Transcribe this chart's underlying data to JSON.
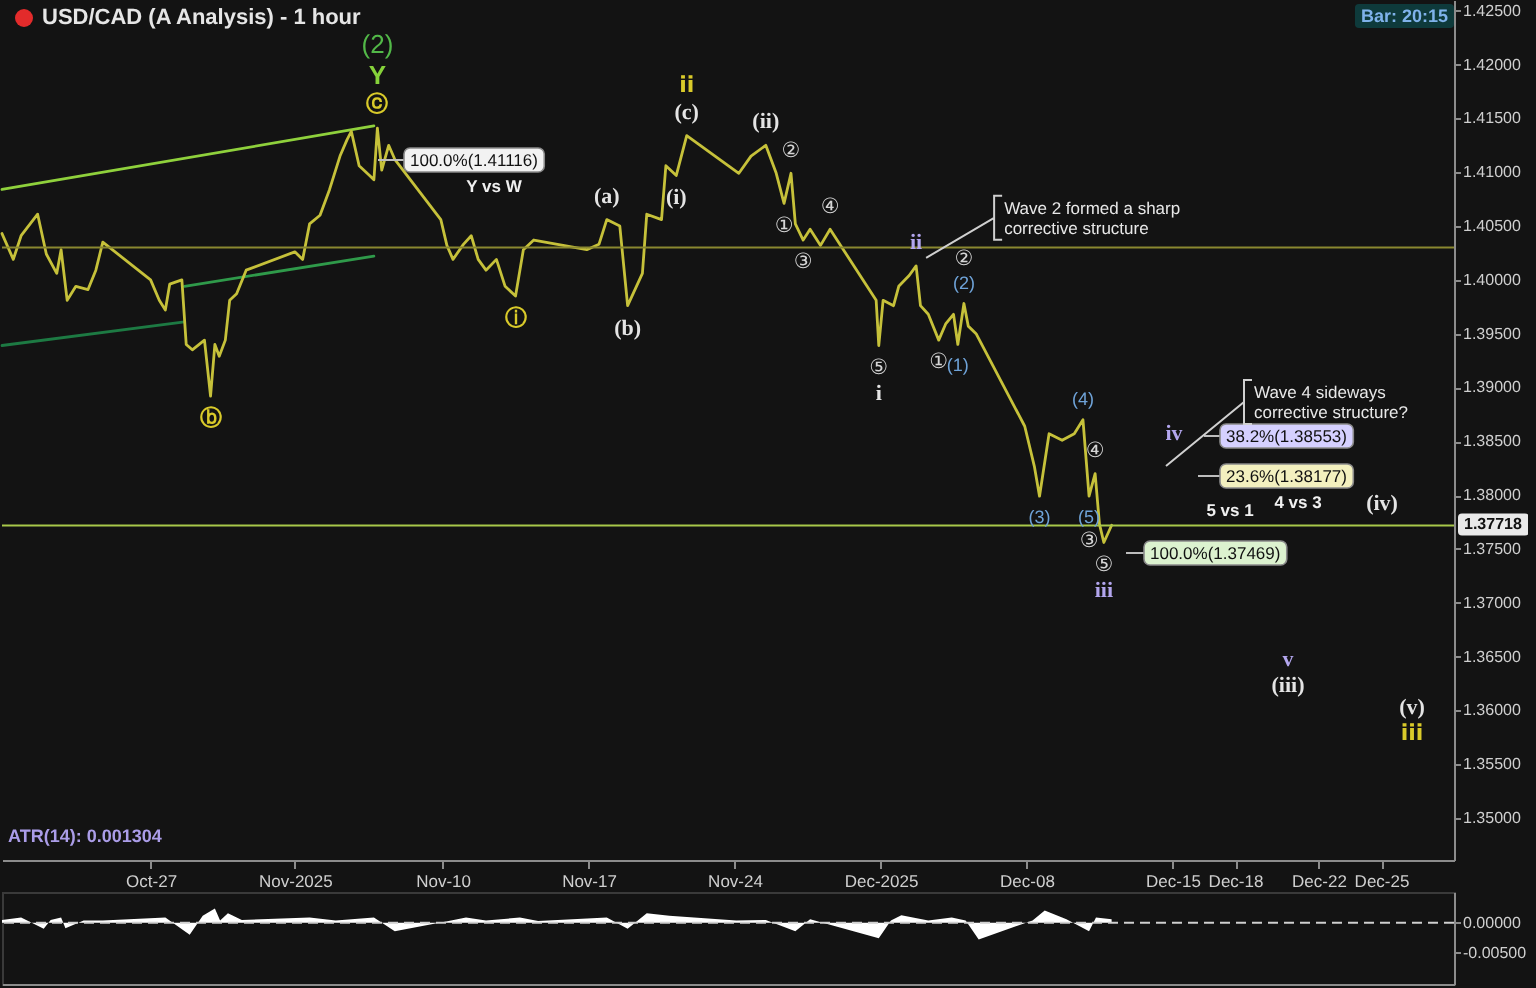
{
  "chart_data": [
    {
      "type": "line",
      "title": "USD/CAD (A Analysis) - 1 hour",
      "x": [
        "2025-10-19T21:00",
        "2025-10-20T10:00",
        "2025-10-20T19:00",
        "2025-10-21T14:00",
        "2025-10-22T00:00",
        "2025-10-22T12:00",
        "2025-10-22T17:00",
        "2025-10-23T00:00",
        "2025-10-23T10:00",
        "2025-10-24T00:00",
        "2025-10-24T09:00",
        "2025-10-24T17:00",
        "2025-10-27T00:00",
        "2025-10-27T10:00",
        "2025-10-27T17:00",
        "2025-10-27T22:00",
        "2025-10-28T12:00",
        "2025-10-28T17:00",
        "2025-10-29T00:00",
        "2025-10-29T14:00",
        "2025-10-29T21:00",
        "2025-10-30T02:00",
        "2025-10-30T07:00",
        "2025-10-30T14:00",
        "2025-10-30T19:00",
        "2025-10-31T03:00",
        "2025-10-31T14:00",
        "2025-11-02T22:00",
        "2025-11-03T07:00",
        "2025-11-03T15:00",
        "2025-11-04T03:00",
        "2025-11-04T14:00",
        "2025-11-05T02:00",
        "2025-11-05T10:00",
        "2025-11-05T15:00",
        "2025-11-06T00:00",
        "2025-11-06T12:00",
        "2025-11-06T17:00",
        "2025-11-06T21:00",
        "2025-11-07T02:00",
        "2025-11-07T10:00",
        "2025-11-07T17:00",
        "2025-11-09T22:00",
        "2025-11-10T05:00",
        "2025-11-10T12:00",
        "2025-11-11T00:00",
        "2025-11-11T09:00",
        "2025-11-11T17:00",
        "2025-11-12T02:00",
        "2025-11-12T14:00",
        "2025-11-13T00:00",
        "2025-11-13T12:00",
        "2025-11-13T21:00",
        "2025-11-14T09:00",
        "2025-11-16T22:00",
        "2025-11-17T12:00",
        "2025-11-17T21:00",
        "2025-11-18T12:00",
        "2025-11-18T21:00",
        "2025-11-19T14:00",
        "2025-11-19T19:00",
        "2025-11-20T12:00",
        "2025-11-20T17:00",
        "2025-11-21T05:00",
        "2025-11-21T17:00",
        "2025-11-24T05:00",
        "2025-11-24T19:00",
        "2025-11-25T12:00",
        "2025-11-26T00:00",
        "2025-11-26T09:00",
        "2025-11-26T17:00",
        "2025-11-26T22:00",
        "2025-11-27T07:00",
        "2025-11-27T15:00",
        "2025-11-28T03:00",
        "2025-11-28T14:00",
        "2025-11-30T19:00",
        "2025-11-30T22:00",
        "2025-12-01T03:00",
        "2025-12-01T15:00",
        "2025-12-01T21:00",
        "2025-12-02T09:00",
        "2025-12-02T17:00",
        "2025-12-02T22:00",
        "2025-12-03T07:00",
        "2025-12-03T19:00",
        "2025-12-04T03:00",
        "2025-12-04T12:00",
        "2025-12-04T17:00",
        "2025-12-05T00:00",
        "2025-12-05T05:00",
        "2025-12-05T14:00",
        "2025-12-07T22:00",
        "2025-12-08T09:00",
        "2025-12-08T15:00",
        "2025-12-09T02:00",
        "2025-12-09T17:00",
        "2025-12-10T07:00",
        "2025-12-10T17:00",
        "2025-12-11T00:00",
        "2025-12-11T07:00",
        "2025-12-11T12:00",
        "2025-12-11T17:00",
        "2025-12-12T02:00"
      ],
      "series": [
        {
          "color": "#8fd13c",
          "x": [
            "2025-10-19T21:00",
            "2025-11-06T17:00"
          ],
          "values": [
            1.4084,
            1.4143
          ]
        },
        {
          "color": "#1d7a43",
          "x": [
            "2025-10-19T21:00",
            "2025-10-28T15:00"
          ],
          "values": [
            1.3939,
            1.3961
          ]
        },
        {
          "color": "#2f9a4a",
          "x": [
            "2025-10-28T15:00",
            "2025-11-06T17:00"
          ],
          "values": [
            1.3994,
            1.4022
          ]
        },
        {
          "color": "#c6c13a",
          "values": [
            1.4043,
            1.4019,
            1.4041,
            1.4061,
            1.4024,
            1.4006,
            1.4028,
            1.3981,
            1.3994,
            1.3991,
            1.4009,
            1.4035,
            1.4,
            1.3981,
            1.3972,
            1.3996,
            1.4,
            1.394,
            1.3935,
            1.3944,
            1.3892,
            1.394,
            1.3929,
            1.3944,
            1.3981,
            1.3987,
            1.4009,
            1.4026,
            1.4019,
            1.4052,
            1.406,
            1.4084,
            1.4115,
            1.413,
            1.4138,
            1.4106,
            1.4097,
            1.4093,
            1.4141,
            1.4102,
            1.4125,
            1.4112,
            1.4056,
            1.4032,
            1.4019,
            1.4033,
            1.4041,
            1.4019,
            1.4009,
            1.4019,
            1.3994,
            1.3985,
            1.4028,
            1.4037,
            1.4028,
            1.4033,
            1.4056,
            1.405,
            1.3976,
            1.4006,
            1.4061,
            1.4056,
            1.4106,
            1.4097,
            1.4134,
            1.4099,
            1.4115,
            1.4125,
            1.4099,
            1.4071,
            1.4099,
            1.4052,
            1.4037,
            1.4047,
            1.4032,
            1.4047,
            1.3981,
            1.3939,
            1.3981,
            1.3976,
            1.3994,
            1.4004,
            1.4013,
            1.3976,
            1.3968,
            1.3944,
            1.3959,
            1.3968,
            1.394,
            1.3978,
            1.3957,
            1.395,
            1.3864,
            1.3827,
            1.3799,
            1.3857,
            1.3851,
            1.3857,
            1.387,
            1.3799,
            1.382,
            1.3773,
            1.3756,
            1.3772
          ]
        }
      ],
      "xlim": [
        "2025-10-19T21:00",
        "2025-12-28T12:00"
      ],
      "xticks": [
        {
          "value": "2025-10-27",
          "label": "Oct-27"
        },
        {
          "value": "2025-11-02T22:00",
          "label": "Nov-2025"
        },
        {
          "value": "2025-11-10",
          "label": "Nov-10"
        },
        {
          "value": "2025-11-17",
          "label": "Nov-17"
        },
        {
          "value": "2025-11-24",
          "label": "Nov-24"
        },
        {
          "value": "2025-12-01",
          "label": "Dec-2025"
        },
        {
          "value": "2025-12-08",
          "label": "Dec-08"
        },
        {
          "value": "2025-12-15",
          "label": "Dec-15"
        },
        {
          "value": "2025-12-18",
          "label": "Dec-18"
        },
        {
          "value": "2025-12-22",
          "label": "Dec-22"
        },
        {
          "value": "2025-12-25",
          "label": "Dec-25"
        }
      ],
      "ylim": [
        1.3461,
        1.426
      ],
      "yticks": [
        {
          "value": 1.35,
          "label": "1.35000"
        },
        {
          "value": 1.355,
          "label": "1.35500"
        },
        {
          "value": 1.36,
          "label": "1.36000"
        },
        {
          "value": 1.365,
          "label": "1.36500"
        },
        {
          "value": 1.37,
          "label": "1.37000"
        },
        {
          "value": 1.375,
          "label": "1.37500"
        },
        {
          "value": 1.38,
          "label": "1.38000"
        },
        {
          "value": 1.385,
          "label": "1.38500"
        },
        {
          "value": 1.39,
          "label": "1.39000"
        },
        {
          "value": 1.395,
          "label": "1.39500"
        },
        {
          "value": 1.4,
          "label": "1.40000"
        },
        {
          "value": 1.405,
          "label": "1.40500"
        },
        {
          "value": 1.41,
          "label": "1.41000"
        },
        {
          "value": 1.415,
          "label": "1.41500"
        },
        {
          "value": 1.42,
          "label": "1.42000"
        },
        {
          "value": 1.425,
          "label": "1.42500"
        }
      ],
      "ref_lines": [
        {
          "axis": "y",
          "value": 1.403,
          "color": "#8a8830"
        },
        {
          "axis": "y",
          "value": 1.37718,
          "label": "1.37718",
          "color": "#a8c84a"
        }
      ],
      "annotations": [
        "Bar: 20:15",
        "ATR(14): 0.001304",
        {
          "text": "(2)",
          "x": "2025-11-06T21:00",
          "y": 1.4141
        },
        {
          "text": "Y",
          "x": "2025-11-06T21:00",
          "y": 1.4141
        },
        {
          "text": "ⓒ",
          "x": "2025-11-06T21:00",
          "y": 1.4141
        },
        {
          "text": "ⓑ",
          "x": "2025-10-29T21:00",
          "y": 1.3892
        },
        {
          "text": "ⓘ",
          "x": "2025-11-13T12:00",
          "y": 1.3985
        },
        {
          "text": "(a)",
          "x": "2025-11-17T21:00",
          "y": 1.4056
        },
        {
          "text": "(b)",
          "x": "2025-11-18T21:00",
          "y": 1.3976
        },
        {
          "text": "ii",
          "x": "2025-11-21T17:00",
          "y": 1.4134
        },
        {
          "text": "(c)",
          "x": "2025-11-21T17:00",
          "y": 1.4134
        },
        {
          "text": "(i)",
          "x": "2025-11-21T05:00",
          "y": 1.4097
        },
        {
          "text": "(ii)",
          "x": "2025-11-25T12:00",
          "y": 1.4125
        },
        {
          "text": "①",
          "x": "2025-11-26T09:00",
          "y": 1.4071
        },
        {
          "text": "②",
          "x": "2025-11-26T17:00",
          "y": 1.4099
        },
        {
          "text": "③",
          "x": "2025-11-27T07:00",
          "y": 1.4037
        },
        {
          "text": "④",
          "x": "2025-11-28T14:00",
          "y": 1.4047
        },
        {
          "text": "⑤",
          "x": "2025-11-30T22:00",
          "y": 1.3939
        },
        {
          "text": "i",
          "x": "2025-11-30T22:00",
          "y": 1.3939
        },
        {
          "text": "ii",
          "x": "2025-12-02T17:00",
          "y": 1.4013
        },
        {
          "text": "①",
          "x": "2025-12-03T19:00",
          "y": 1.3944
        },
        {
          "text": "②",
          "x": "2025-12-05T00:00",
          "y": 1.3978
        },
        {
          "text": "(2)",
          "x": "2025-12-05T00:00",
          "y": 1.3978
        },
        {
          "text": "(1)",
          "x": "2025-12-04T17:00",
          "y": 1.394
        },
        {
          "text": "(3)",
          "x": "2025-12-08T15:00",
          "y": 1.3799
        },
        {
          "text": "(4)",
          "x": "2025-12-10T17:00",
          "y": 1.387
        },
        {
          "text": "④",
          "x": "2025-12-11T07:00",
          "y": 1.382
        },
        {
          "text": "(5)",
          "x": "2025-12-11T00:00",
          "y": 1.3799
        },
        {
          "text": "③",
          "x": "2025-12-11T00:00",
          "y": 1.3799
        },
        {
          "text": "⑤",
          "x": "2025-12-11T17:00",
          "y": 1.3756
        },
        {
          "text": "iii",
          "x": "2025-12-11T17:00",
          "y": 1.3756
        },
        "iv",
        "(iv)",
        "v",
        "(iii)",
        "(v)",
        "iii",
        "100.0%(1.41116)",
        "Y vs W",
        "38.2%(1.38553)",
        "23.6%(1.38177)",
        "4 vs 3",
        "100.0%(1.37469)",
        "5 vs 1",
        {
          "text": "Wave 2 formed a sharp corrective structure",
          "x": "2025-12-02T17:00",
          "y": 1.4013
        },
        "Wave 4 sideways corrective structure?"
      ]
    },
    {
      "type": "area",
      "x": [
        "2025-10-19T21:00",
        "2025-10-20T19:00",
        "2025-10-21T21:00",
        "2025-10-22T05:00",
        "2025-10-22T17:00",
        "2025-10-22T22:00",
        "2025-10-23T19:00",
        "2025-10-24T17:00",
        "2025-10-27T17:00",
        "2025-10-28T21:00",
        "2025-10-29T12:00",
        "2025-10-30T02:00",
        "2025-10-30T08:00",
        "2025-10-30T17:00",
        "2025-10-31T09:00",
        "2025-11-03T15:00",
        "2025-11-04T21:00",
        "2025-11-06T17:00",
        "2025-11-07T17:00",
        "2025-11-10T07:00",
        "2025-11-11T03:00",
        "2025-11-12T02:00",
        "2025-11-13T17:00",
        "2025-11-14T14:00",
        "2025-11-17T21:00",
        "2025-11-18T21:00",
        "2025-11-19T19:00",
        "2025-11-20T21:00",
        "2025-11-24T02:00",
        "2025-11-25T12:00",
        "2025-11-26T22:00",
        "2025-11-27T15:00",
        "2025-11-30T22:00",
        "2025-12-01T12:00",
        "2025-12-02T00:00",
        "2025-12-03T07:00",
        "2025-12-04T10:00",
        "2025-12-05T02:00",
        "2025-12-05T17:00",
        "2025-12-08T07:00",
        "2025-12-08T21:00",
        "2025-12-09T22:00",
        "2025-12-11T00:00",
        "2025-12-11T08:00",
        "2025-12-12T02:00"
      ],
      "series": [
        {
          "color": "#ffffff",
          "values": [
            0.0005,
            0.0009,
            -0.001,
            0.0005,
            0.0009,
            -0.0009,
            0.0004,
            0.0004,
            0.0009,
            -0.002,
            0.0012,
            0.0024,
            0.0004,
            0.0016,
            0.0005,
            0.0009,
            0.0004,
            0.0009,
            -0.0014,
            0.0003,
            0.0009,
            0.0004,
            0.0009,
            0.0003,
            0.0009,
            -0.001,
            0.0016,
            0.0012,
            0.0004,
            0.0005,
            -0.0014,
            0.0006,
            -0.0026,
            0.0004,
            0.0013,
            0.0004,
            0.0009,
            0.0004,
            -0.0028,
            0.0004,
            0.0021,
            0.0006,
            -0.0014,
            0.0009,
            0.0006
          ]
        }
      ],
      "xlim": [
        "2025-10-19T21:00",
        "2025-12-28T12:00"
      ],
      "ylim": [
        -0.0103,
        0.0052
      ],
      "yticks": [
        {
          "value": 0,
          "label": "0.00000"
        },
        {
          "value": -0.005,
          "label": "-0.00500"
        }
      ],
      "tick_labels": "y",
      "ref_lines": [
        {
          "axis": "y",
          "value": 0,
          "line_style": "dashed",
          "color": "#d0d0d0"
        }
      ]
    }
  ]
}
